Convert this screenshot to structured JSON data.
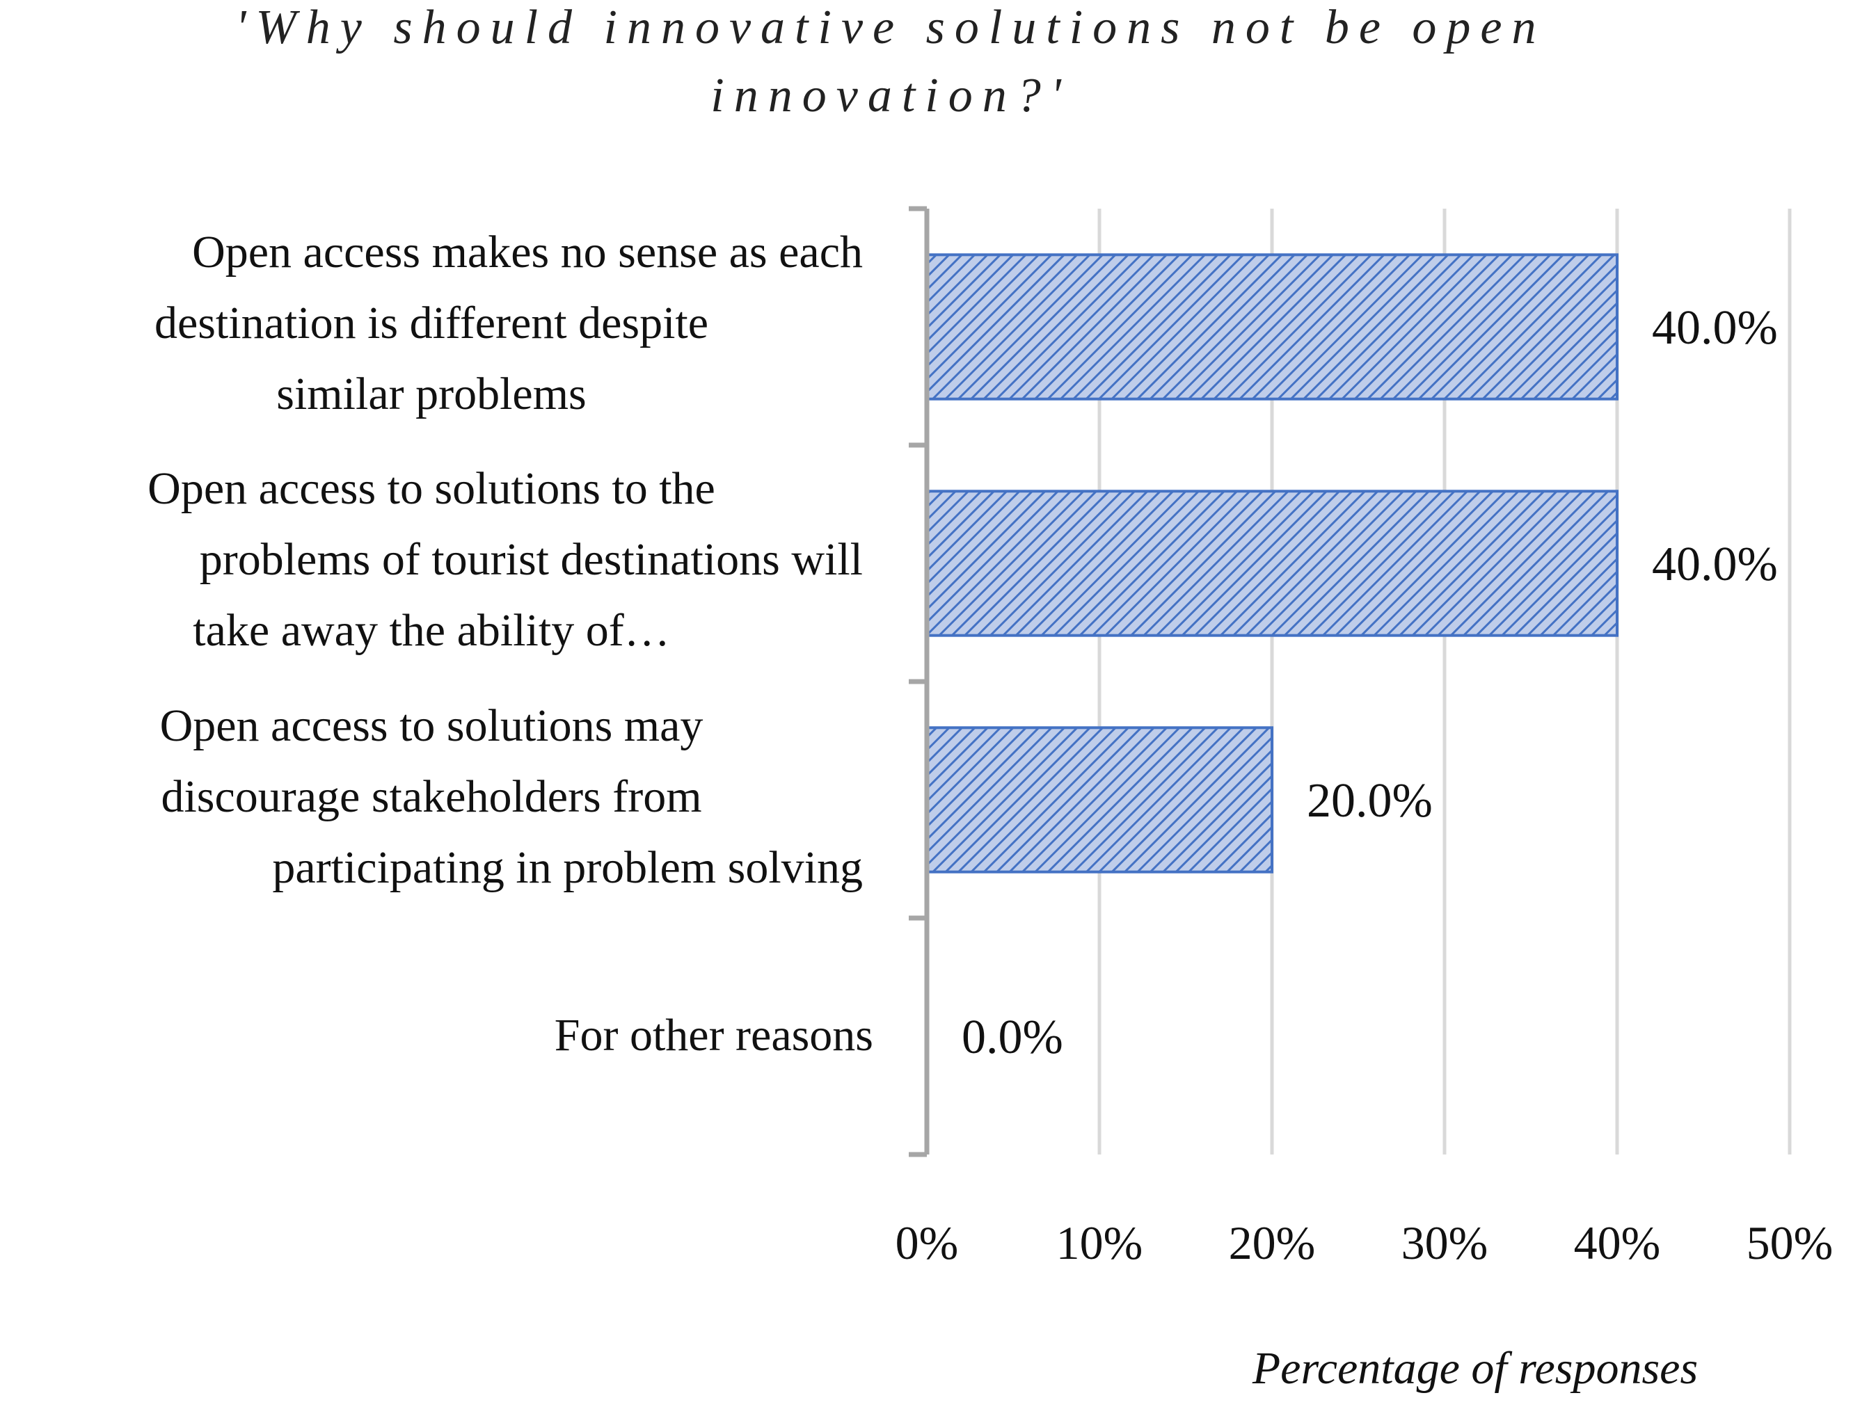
{
  "chart_data": {
    "type": "bar",
    "orientation": "horizontal",
    "title_lines": [
      "'Why should innovative solutions not be open",
      "innovation?'"
    ],
    "xlabel": "Percentage of responses",
    "categories": [
      [
        "Open access makes no sense as each",
        "destination is different despite",
        "similar problems"
      ],
      [
        "Open access to solutions to the",
        "problems of tourist destinations will",
        "take away the ability of…"
      ],
      [
        "Open access to solutions may",
        "discourage stakeholders from",
        "participating in problem solving"
      ],
      [
        "For other reasons"
      ]
    ],
    "values": [
      40.0,
      40.0,
      20.0,
      0.0
    ],
    "data_labels": [
      "40.0%",
      "40.0%",
      "20.0%",
      "0.0%"
    ],
    "xlim": [
      0,
      50
    ],
    "xticks": [
      "0%",
      "10%",
      "20%",
      "30%",
      "40%",
      "50%"
    ],
    "grid": true,
    "bar_color": "#4472c4",
    "bar_pattern": "diagonal-hatch",
    "gridline_color": "#d9d9d9",
    "axis_color": "#a6a6a6"
  }
}
